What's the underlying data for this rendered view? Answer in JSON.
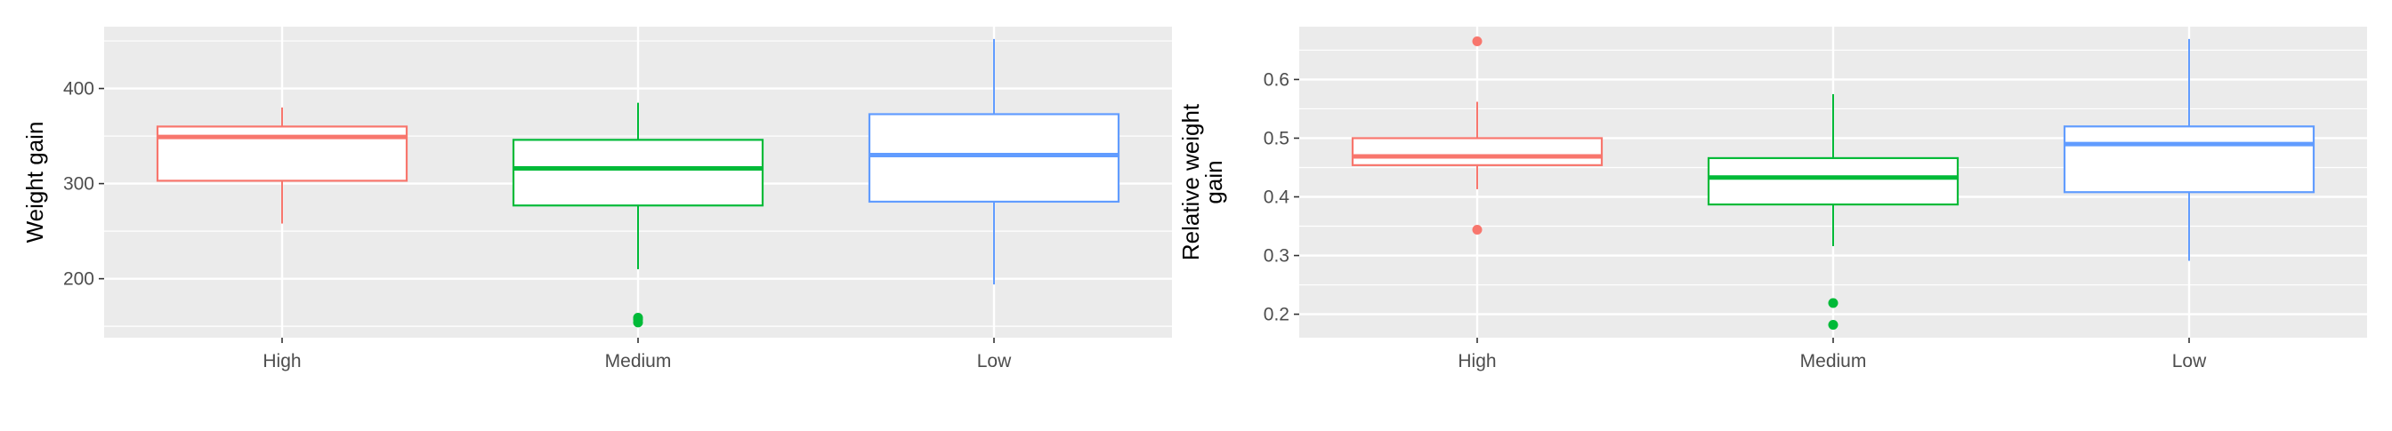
{
  "chart_data": [
    {
      "type": "box",
      "title": "",
      "xlabel": "",
      "ylabel": "Weight gain",
      "ylim": [
        138,
        465
      ],
      "yticks": [
        200,
        300,
        400
      ],
      "grid": true,
      "legend": "none",
      "categories": [
        "High",
        "Medium",
        "Low"
      ],
      "colors": [
        "#F8766D",
        "#00BA38",
        "#619CFF"
      ],
      "boxes": [
        {
          "category": "High",
          "whisker_low": 258,
          "q1": 303,
          "median": 349,
          "q3": 360,
          "whisker_high": 380,
          "outliers": []
        },
        {
          "category": "Medium",
          "whisker_low": 210,
          "q1": 277,
          "median": 316,
          "q3": 346,
          "whisker_high": 385,
          "outliers": [
            154,
            157,
            159
          ]
        },
        {
          "category": "Low",
          "whisker_low": 194,
          "q1": 281,
          "median": 330,
          "q3": 373,
          "whisker_high": 452,
          "outliers": []
        }
      ]
    },
    {
      "type": "box",
      "title": "",
      "xlabel": "",
      "ylabel": "Relative weight gain",
      "ylabel_lines": [
        "Relative weight",
        "gain"
      ],
      "ylim": [
        0.16,
        0.69
      ],
      "yticks": [
        0.2,
        0.3,
        0.4,
        0.5,
        0.6
      ],
      "grid": true,
      "legend": "none",
      "categories": [
        "High",
        "Medium",
        "Low"
      ],
      "colors": [
        "#F8766D",
        "#00BA38",
        "#619CFF"
      ],
      "boxes": [
        {
          "category": "High",
          "whisker_low": 0.413,
          "q1": 0.454,
          "median": 0.469,
          "q3": 0.5,
          "whisker_high": 0.562,
          "outliers": [
            0.344,
            0.665
          ]
        },
        {
          "category": "Medium",
          "whisker_low": 0.316,
          "q1": 0.387,
          "median": 0.433,
          "q3": 0.466,
          "whisker_high": 0.575,
          "outliers": [
            0.182,
            0.219
          ]
        },
        {
          "category": "Low",
          "whisker_low": 0.291,
          "q1": 0.408,
          "median": 0.49,
          "q3": 0.52,
          "whisker_high": 0.669,
          "outliers": []
        }
      ]
    }
  ]
}
